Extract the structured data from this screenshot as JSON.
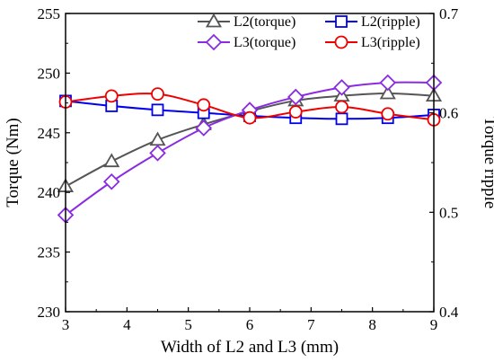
{
  "chart_data": {
    "type": "line",
    "xlabel": "Width of L2 and L3 (mm)",
    "ylabel_left": "Torque (Nm)",
    "ylabel_right": "Torque ripple",
    "xlim": [
      3,
      9
    ],
    "ylim_left": [
      230,
      255
    ],
    "ylim_right": [
      0.4,
      0.7
    ],
    "x_ticks": [
      3,
      4,
      5,
      6,
      7,
      8,
      9
    ],
    "y_left_ticks": [
      230,
      235,
      240,
      245,
      250,
      255
    ],
    "y_right_ticks": [
      0.4,
      0.5,
      0.6,
      0.7
    ],
    "grid": false,
    "legend_position": "top",
    "series": [
      {
        "name": "L2(torque)",
        "axis": "left",
        "color": "#555555",
        "marker": "triangle",
        "x": [
          3,
          3.75,
          4.5,
          5.25,
          6,
          6.75,
          7.5,
          8.25,
          9
        ],
        "values": [
          240.5,
          242.6,
          244.4,
          245.7,
          246.8,
          247.7,
          248.1,
          248.3,
          248.1
        ]
      },
      {
        "name": "L2(ripple)",
        "axis": "right",
        "color": "#0000ee",
        "marker": "square",
        "x": [
          3,
          3.75,
          4.5,
          5.25,
          6,
          6.75,
          7.5,
          8.25,
          9
        ],
        "values": [
          0.612,
          0.607,
          0.603,
          0.6,
          0.597,
          0.595,
          0.594,
          0.595,
          0.598
        ]
      },
      {
        "name": "L3(torque)",
        "axis": "left",
        "color": "#8a2be2",
        "marker": "diamond",
        "x": [
          3,
          3.75,
          4.5,
          5.25,
          6,
          6.75,
          7.5,
          8.25,
          9
        ],
        "values": [
          238.1,
          240.9,
          243.3,
          245.4,
          246.9,
          248.0,
          248.8,
          249.2,
          249.2
        ]
      },
      {
        "name": "L3(ripple)",
        "axis": "right",
        "color": "#ee0000",
        "marker": "circle",
        "x": [
          3,
          3.75,
          4.5,
          5.25,
          6,
          6.75,
          7.5,
          8.25,
          9
        ],
        "values": [
          0.611,
          0.617,
          0.619,
          0.608,
          0.595,
          0.601,
          0.606,
          0.599,
          0.593
        ]
      }
    ]
  }
}
